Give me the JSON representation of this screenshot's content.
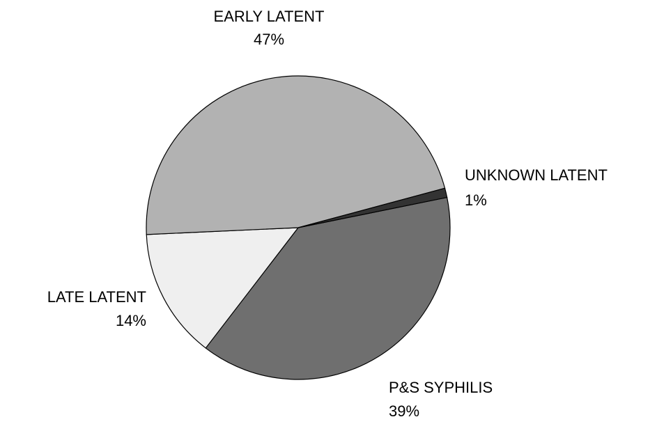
{
  "chart_data": {
    "type": "pie",
    "categories": [
      "P&S SYPHILIS",
      "LATE LATENT",
      "EARLY LATENT",
      "UNKNOWN LATENT"
    ],
    "values": [
      39,
      14,
      47,
      1
    ],
    "value_labels": [
      "39%",
      "14%",
      "47%",
      "1%"
    ],
    "colors": [
      "#6f6f6f",
      "#efefef",
      "#b2b2b2",
      "#333333"
    ]
  }
}
